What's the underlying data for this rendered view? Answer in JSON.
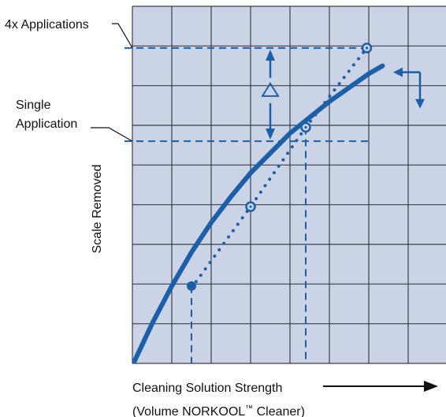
{
  "chart_data": {
    "type": "line",
    "title": "",
    "xlabel": "Cleaning Solution Strength",
    "xlabel_sub_prefix": "(Volume NORKOOL",
    "xlabel_sub_tm": "™",
    "xlabel_sub_suffix": " Cleaner)",
    "ylabel": "Scale Removed",
    "xlim": [
      0,
      7
    ],
    "ylim": [
      0,
      9
    ],
    "grid": true,
    "annotations": {
      "four_x": "4x Applications",
      "single_line1": "Single",
      "single_line2": "Application",
      "delta": "Δ"
    },
    "series": [
      {
        "style": "solid-curve",
        "x": [
          0.05,
          0.5,
          1.0,
          1.5,
          2.0,
          2.5,
          3.0,
          3.5,
          4.0,
          4.5,
          5.0,
          5.5,
          6.0,
          6.35
        ],
        "y": [
          0.05,
          1.0,
          1.95,
          2.8,
          3.55,
          4.2,
          4.8,
          5.3,
          5.8,
          6.2,
          6.6,
          6.95,
          7.3,
          7.5
        ]
      },
      {
        "style": "dotted",
        "x": [
          1.5,
          3.0,
          4.4,
          5.95
        ],
        "y": [
          1.9,
          3.95,
          5.95,
          7.95
        ]
      }
    ],
    "markers": [
      {
        "kind": "filled",
        "x": 1.5,
        "y": 1.95
      },
      {
        "kind": "open",
        "x": 3.0,
        "y": 3.95
      },
      {
        "kind": "open",
        "x": 4.4,
        "y": 5.95
      },
      {
        "kind": "open",
        "x": 5.95,
        "y": 7.95
      }
    ],
    "reference_lines": {
      "horizontal": [
        {
          "y": 7.95,
          "x_from": -0.2,
          "x_to": 5.95
        },
        {
          "y": 5.6,
          "x_from": -0.2,
          "x_to": 6.0
        }
      ],
      "vertical": [
        {
          "x": 1.5,
          "y_from": 0,
          "y_to": 1.95
        },
        {
          "x": 4.4,
          "y_from": 0,
          "y_to": 5.95
        }
      ]
    },
    "delta_arrow": {
      "x": 3.5,
      "y_top": 7.95,
      "y_bottom": 5.6
    },
    "end_arrows": {
      "x": 7.3,
      "y": 7.3
    },
    "colors": {
      "plot_background": "#cbd4e6",
      "grid": "#3a3f4a",
      "series": "#1a5fa8",
      "text": "#111111"
    }
  }
}
